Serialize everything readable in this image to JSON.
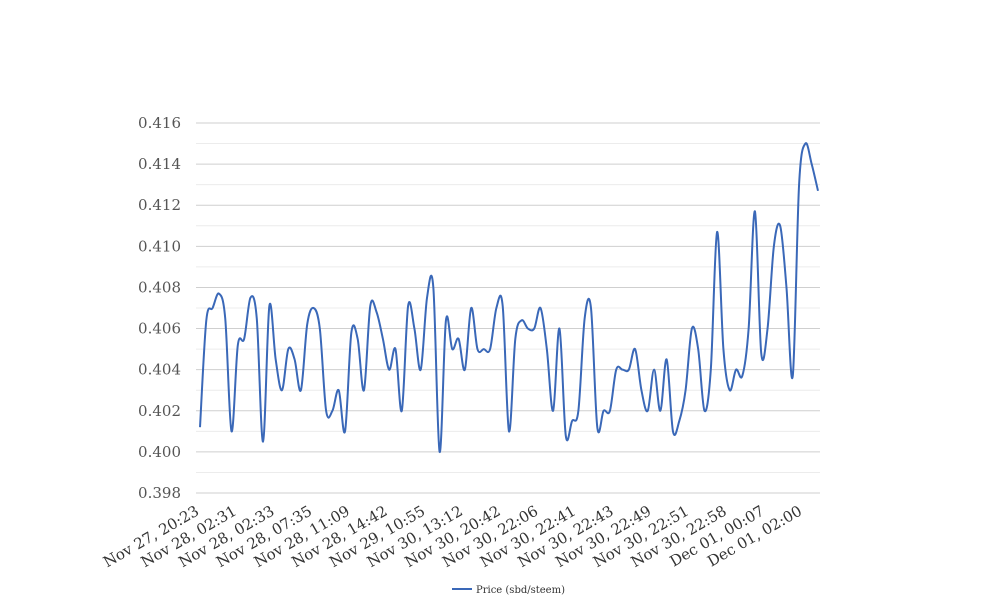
{
  "chart_data": {
    "type": "line",
    "title": "",
    "xlabel": "",
    "ylabel": "",
    "ylim": [
      0.398,
      0.416
    ],
    "yticks": [
      "0.398",
      "0.400",
      "0.402",
      "0.404",
      "0.406",
      "0.408",
      "0.410",
      "0.412",
      "0.414",
      "0.416"
    ],
    "grid": true,
    "legend_position": "bottom",
    "line_color": "#3a68b8",
    "x_tick_labels": [
      "Nov 27, 20:23",
      "Nov 28, 02:31",
      "Nov 28, 02:33",
      "Nov 28, 07:35",
      "Nov 28, 11:09",
      "Nov 28, 14:42",
      "Nov 29, 10:55",
      "Nov 30, 13:12",
      "Nov 30, 20:42",
      "Nov 30, 22:06",
      "Nov 30, 22:41",
      "Nov 30, 22:43",
      "Nov 30, 22:49",
      "Nov 30, 22:51",
      "Nov 30, 22:58",
      "Dec 01, 00:07",
      "Dec 01, 02:00"
    ],
    "series": [
      {
        "name": "Price (sbd/steem)",
        "values": [
          0.4012,
          0.4064,
          0.407,
          0.4077,
          0.4065,
          0.401,
          0.4052,
          0.4055,
          0.4075,
          0.4065,
          0.4005,
          0.4071,
          0.4045,
          0.403,
          0.405,
          0.4045,
          0.403,
          0.4062,
          0.407,
          0.406,
          0.402,
          0.402,
          0.403,
          0.401,
          0.4058,
          0.4055,
          0.403,
          0.4071,
          0.4068,
          0.4055,
          0.404,
          0.405,
          0.402,
          0.4071,
          0.406,
          0.404,
          0.4075,
          0.408,
          0.4,
          0.4064,
          0.405,
          0.4055,
          0.404,
          0.407,
          0.405,
          0.405,
          0.405,
          0.407,
          0.4071,
          0.401,
          0.4055,
          0.4064,
          0.406,
          0.406,
          0.407,
          0.405,
          0.402,
          0.406,
          0.4008,
          0.4015,
          0.402,
          0.4065,
          0.407,
          0.4012,
          0.402,
          0.402,
          0.404,
          0.404,
          0.404,
          0.405,
          0.403,
          0.402,
          0.404,
          0.402,
          0.4045,
          0.401,
          0.4015,
          0.403,
          0.406,
          0.405,
          0.402,
          0.404,
          0.4107,
          0.405,
          0.403,
          0.404,
          0.4037,
          0.406,
          0.4117,
          0.4048,
          0.406,
          0.41,
          0.411,
          0.408,
          0.4037,
          0.413,
          0.415,
          0.414,
          0.4127
        ]
      }
    ]
  }
}
